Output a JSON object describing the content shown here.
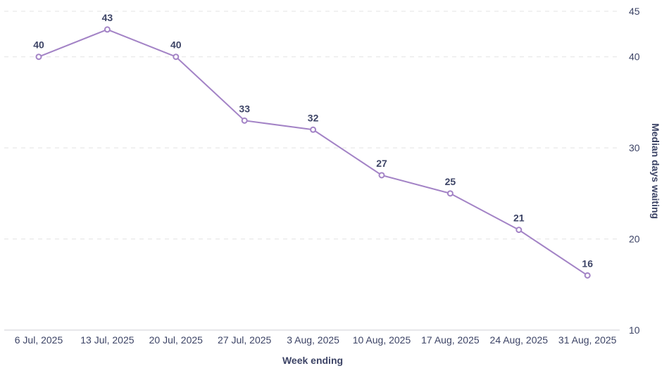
{
  "chart_data": {
    "type": "line",
    "title": "",
    "xlabel": "Week ending",
    "ylabel": "Median days waiting",
    "categories": [
      "6 Jul, 2025",
      "13 Jul, 2025",
      "20 Jul, 2025",
      "27 Jul, 2025",
      "3 Aug, 2025",
      "10 Aug, 2025",
      "17 Aug, 2025",
      "24 Aug, 2025",
      "31 Aug, 2025"
    ],
    "series": [
      {
        "values": [
          40,
          43,
          40,
          33,
          32,
          27,
          25,
          21,
          16
        ]
      }
    ],
    "ylim": [
      10,
      45
    ],
    "yticks": [
      10,
      20,
      30,
      40,
      45
    ],
    "y_axis_position": "right",
    "grid": true,
    "legend": "none",
    "colors": {
      "line": "#a383c6",
      "text": "#3d4466",
      "grid": "#e3e3e3"
    }
  }
}
